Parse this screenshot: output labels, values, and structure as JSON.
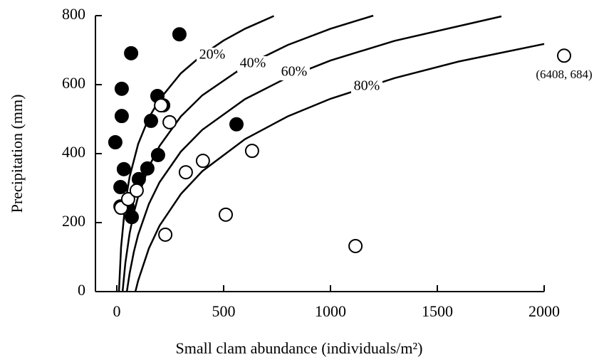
{
  "chart_data": {
    "type": "scatter",
    "x_label": "Small clam abundance (individuals/m²)",
    "y_label": "Precipitation (mm)",
    "xlim": [
      -100,
      2000
    ],
    "ylim": [
      0,
      800
    ],
    "xticks": [
      0,
      500,
      1000,
      1500,
      2000
    ],
    "yticks": [
      0,
      200,
      400,
      600,
      800
    ],
    "series": [
      {
        "color": "#000000",
        "fill": "#000000",
        "x": [
          -7,
          67,
          23,
          23,
          33,
          17,
          17,
          50,
          70,
          103,
          143,
          160,
          193,
          190,
          217,
          293,
          560
        ],
        "values": [
          433,
          691,
          588,
          509,
          355,
          303,
          247,
          247,
          216,
          326,
          357,
          495,
          396,
          567,
          540,
          746,
          485
        ]
      },
      {
        "color": "#000000",
        "fill": "#ffffff",
        "x": [
          20,
          53,
          93,
          207,
          247,
          323,
          403,
          633,
          510,
          227,
          1117
        ],
        "values": [
          243,
          268,
          293,
          540,
          491,
          346,
          379,
          408,
          223,
          165,
          132
        ]
      }
    ],
    "curves": [
      {
        "name": "20%",
        "color": "#000000",
        "x": [
          10,
          20,
          40,
          60,
          100,
          150,
          200,
          300,
          400,
          500,
          600,
          735
        ],
        "values": [
          0,
          129,
          258,
          333,
          428,
          504,
          557,
          633,
          686,
          728,
          762,
          799
        ]
      },
      {
        "name": "40%",
        "color": "#000000",
        "x": [
          27,
          40,
          60,
          80,
          100,
          150,
          200,
          300,
          400,
          600,
          800,
          1000,
          1200
        ],
        "values": [
          0,
          83,
          169,
          229,
          276,
          362,
          422,
          508,
          569,
          654,
          715,
          762,
          800
        ]
      },
      {
        "name": "60%",
        "color": "#000000",
        "x": [
          47,
          60,
          80,
          100,
          150,
          200,
          300,
          400,
          600,
          800,
          1000,
          1300,
          1800
        ],
        "values": [
          0,
          53,
          116,
          165,
          254,
          317,
          406,
          469,
          558,
          621,
          670,
          727,
          798
        ]
      },
      {
        "name": "80%",
        "color": "#000000",
        "x": [
          87,
          100,
          150,
          200,
          300,
          400,
          600,
          800,
          1000,
          1300,
          1600,
          2000
        ],
        "values": [
          0,
          32,
          125,
          191,
          283,
          349,
          442,
          508,
          559,
          619,
          667,
          718
        ]
      }
    ],
    "annotations": [
      {
        "text": "(6408, 684)",
        "x": 6408,
        "y": 684
      }
    ]
  }
}
